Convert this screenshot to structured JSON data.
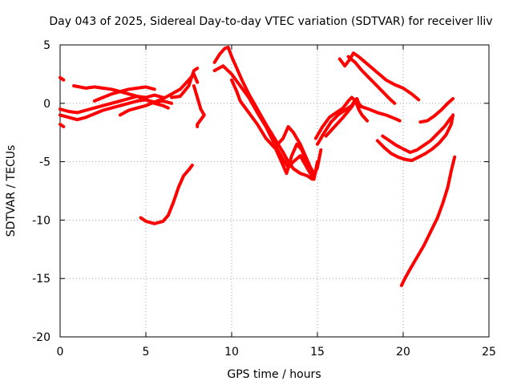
{
  "chart_data": {
    "type": "scatter",
    "title": "Day 043 of 2025, Sidereal Day-to-day VTEC variation (SDTVAR) for receiver lliv",
    "xlabel": "GPS time / hours",
    "ylabel": "SDTVAR / TECUs",
    "xlim": [
      0,
      25
    ],
    "ylim": [
      -20,
      5
    ],
    "xticks": [
      0,
      5,
      10,
      15,
      20,
      25
    ],
    "yticks": [
      5,
      0,
      -5,
      -10,
      -15,
      -20
    ],
    "xtick_labels": [
      "0",
      "5",
      "10",
      "15",
      "20",
      "25"
    ],
    "ytick_labels": [
      "5",
      "0",
      "-5",
      "-10",
      "-15",
      "-20"
    ],
    "grid": true,
    "series_color": "#ff0000",
    "traces": [
      [
        [
          0.0,
          2.2
        ],
        [
          0.2,
          2.0
        ]
      ],
      [
        [
          0.0,
          -0.5
        ],
        [
          0.5,
          -0.7
        ],
        [
          1.0,
          -0.8
        ],
        [
          1.5,
          -0.6
        ],
        [
          2.0,
          -0.4
        ],
        [
          2.5,
          -0.2
        ],
        [
          3.0,
          0.0
        ],
        [
          3.5,
          0.2
        ],
        [
          4.0,
          0.4
        ],
        [
          4.5,
          0.6
        ],
        [
          5.0,
          0.5
        ],
        [
          5.5,
          0.7
        ],
        [
          6.0,
          0.5
        ]
      ],
      [
        [
          0.0,
          -1.0
        ],
        [
          0.5,
          -1.2
        ],
        [
          1.0,
          -1.4
        ],
        [
          1.5,
          -1.2
        ],
        [
          2.0,
          -0.9
        ],
        [
          2.5,
          -0.6
        ],
        [
          3.0,
          -0.4
        ],
        [
          3.5,
          -0.2
        ],
        [
          4.0,
          0.0
        ],
        [
          4.5,
          0.2
        ],
        [
          5.0,
          0.3
        ],
        [
          5.5,
          0.1
        ],
        [
          6.0,
          0.2
        ],
        [
          6.5,
          0.0
        ]
      ],
      [
        [
          0.0,
          -1.8
        ],
        [
          0.2,
          -2.0
        ]
      ],
      [
        [
          0.8,
          1.5
        ],
        [
          1.5,
          1.3
        ],
        [
          2.0,
          1.4
        ],
        [
          2.5,
          1.3
        ],
        [
          3.0,
          1.2
        ],
        [
          3.5,
          1.0
        ],
        [
          4.0,
          0.8
        ],
        [
          4.5,
          0.6
        ],
        [
          5.0,
          0.3
        ],
        [
          5.5,
          0.0
        ],
        [
          6.0,
          -0.2
        ],
        [
          6.3,
          -0.4
        ]
      ],
      [
        [
          2.0,
          0.2
        ],
        [
          2.5,
          0.5
        ],
        [
          3.0,
          0.8
        ],
        [
          3.5,
          1.0
        ],
        [
          4.0,
          1.2
        ],
        [
          4.5,
          1.3
        ],
        [
          5.0,
          1.4
        ],
        [
          5.5,
          1.2
        ]
      ],
      [
        [
          3.5,
          -1.0
        ],
        [
          4.0,
          -0.6
        ],
        [
          4.5,
          -0.4
        ],
        [
          5.0,
          -0.2
        ],
        [
          5.5,
          0.1
        ],
        [
          6.0,
          0.4
        ],
        [
          6.5,
          0.8
        ],
        [
          7.0,
          1.2
        ],
        [
          7.5,
          2.0
        ],
        [
          7.8,
          2.5
        ],
        [
          8.0,
          1.8
        ]
      ],
      [
        [
          6.5,
          0.5
        ],
        [
          7.0,
          0.6
        ],
        [
          7.5,
          1.5
        ],
        [
          7.8,
          2.8
        ],
        [
          8.0,
          3.0
        ]
      ],
      [
        [
          7.8,
          1.5
        ],
        [
          8.0,
          0.5
        ],
        [
          8.2,
          -0.5
        ],
        [
          8.4,
          -1.0
        ],
        [
          8.0,
          -1.8
        ],
        [
          8.0,
          -2.0
        ]
      ],
      [
        [
          4.7,
          -9.8
        ],
        [
          5.0,
          -10.1
        ],
        [
          5.5,
          -10.3
        ],
        [
          6.0,
          -10.1
        ],
        [
          6.3,
          -9.6
        ],
        [
          6.6,
          -8.5
        ],
        [
          6.9,
          -7.2
        ],
        [
          7.2,
          -6.2
        ],
        [
          7.5,
          -5.7
        ],
        [
          7.7,
          -5.3
        ]
      ],
      [
        [
          9.0,
          3.5
        ],
        [
          9.3,
          4.2
        ],
        [
          9.6,
          4.7
        ],
        [
          9.8,
          4.8
        ],
        [
          10.0,
          4.0
        ],
        [
          10.3,
          3.0
        ],
        [
          10.6,
          2.0
        ],
        [
          11.0,
          0.8
        ],
        [
          11.5,
          -0.5
        ],
        [
          12.0,
          -1.8
        ],
        [
          12.5,
          -3.0
        ],
        [
          13.0,
          -4.2
        ],
        [
          13.3,
          -5.0
        ],
        [
          13.6,
          -5.6
        ],
        [
          14.0,
          -6.0
        ],
        [
          14.4,
          -6.2
        ],
        [
          14.7,
          -6.5
        ],
        [
          15.0,
          -5.5
        ],
        [
          15.2,
          -4.0
        ]
      ],
      [
        [
          9.0,
          2.8
        ],
        [
          9.5,
          3.2
        ],
        [
          10.0,
          2.5
        ],
        [
          10.5,
          1.5
        ],
        [
          11.0,
          0.5
        ],
        [
          11.5,
          -0.8
        ],
        [
          12.0,
          -2.0
        ],
        [
          12.5,
          -3.5
        ],
        [
          13.0,
          -4.8
        ],
        [
          13.3,
          -5.5
        ],
        [
          13.6,
          -5.0
        ],
        [
          14.0,
          -4.5
        ],
        [
          14.5,
          -5.8
        ],
        [
          14.8,
          -6.5
        ],
        [
          15.0,
          -5.0
        ]
      ],
      [
        [
          10.0,
          2.0
        ],
        [
          10.3,
          1.0
        ],
        [
          10.5,
          0.2
        ],
        [
          11.0,
          -0.8
        ],
        [
          11.5,
          -1.8
        ],
        [
          12.0,
          -3.0
        ],
        [
          12.5,
          -3.8
        ],
        [
          13.0,
          -3.0
        ],
        [
          13.3,
          -2.0
        ],
        [
          13.6,
          -2.5
        ],
        [
          14.0,
          -3.5
        ],
        [
          14.3,
          -4.5
        ],
        [
          14.6,
          -5.5
        ],
        [
          14.8,
          -6.0
        ]
      ],
      [
        [
          12.3,
          -2.5
        ],
        [
          12.6,
          -4.0
        ],
        [
          12.9,
          -5.0
        ],
        [
          13.2,
          -6.0
        ],
        [
          13.5,
          -4.5
        ],
        [
          13.8,
          -3.5
        ],
        [
          14.1,
          -4.0
        ],
        [
          14.4,
          -5.5
        ]
      ],
      [
        [
          14.9,
          -3.0
        ],
        [
          15.3,
          -2.0
        ],
        [
          15.7,
          -1.2
        ],
        [
          16.1,
          -0.8
        ],
        [
          16.5,
          -0.4
        ],
        [
          16.8,
          0.2
        ],
        [
          17.0,
          0.5
        ],
        [
          17.3,
          0.1
        ],
        [
          17.6,
          -0.3
        ],
        [
          18.0,
          -0.5
        ],
        [
          18.5,
          -0.8
        ],
        [
          19.0,
          -1.0
        ],
        [
          19.5,
          -1.3
        ],
        [
          19.8,
          -1.5
        ]
      ],
      [
        [
          15.0,
          -3.5
        ],
        [
          15.4,
          -2.5
        ],
        [
          15.8,
          -1.6
        ],
        [
          16.2,
          -1.0
        ],
        [
          16.6,
          -0.6
        ],
        [
          17.0,
          -0.2
        ],
        [
          17.2,
          0.3
        ],
        [
          17.4,
          -0.5
        ],
        [
          17.6,
          -1.0
        ],
        [
          17.9,
          -1.5
        ]
      ],
      [
        [
          15.5,
          -2.8
        ],
        [
          16.0,
          -2.0
        ],
        [
          16.5,
          -1.2
        ],
        [
          17.0,
          -0.3
        ],
        [
          17.3,
          0.4
        ],
        [
          17.5,
          -0.3
        ]
      ],
      [
        [
          16.3,
          3.8
        ],
        [
          16.6,
          3.2
        ],
        [
          16.9,
          3.8
        ],
        [
          17.1,
          4.3
        ],
        [
          17.4,
          4.0
        ],
        [
          17.8,
          3.5
        ],
        [
          18.2,
          3.0
        ],
        [
          18.6,
          2.5
        ],
        [
          19.0,
          2.0
        ],
        [
          19.5,
          1.6
        ],
        [
          20.0,
          1.3
        ],
        [
          20.5,
          0.8
        ],
        [
          20.9,
          0.3
        ]
      ],
      [
        [
          16.8,
          4.0
        ],
        [
          17.2,
          3.5
        ],
        [
          17.6,
          2.8
        ],
        [
          18.0,
          2.2
        ],
        [
          18.4,
          1.6
        ],
        [
          18.8,
          1.0
        ],
        [
          19.2,
          0.4
        ],
        [
          19.5,
          0.0
        ]
      ],
      [
        [
          18.5,
          -3.2
        ],
        [
          18.9,
          -3.8
        ],
        [
          19.3,
          -4.3
        ],
        [
          19.7,
          -4.6
        ],
        [
          20.1,
          -4.8
        ],
        [
          20.5,
          -4.9
        ],
        [
          20.9,
          -4.6
        ],
        [
          21.3,
          -4.3
        ],
        [
          21.7,
          -3.9
        ],
        [
          22.1,
          -3.4
        ],
        [
          22.5,
          -2.7
        ],
        [
          22.8,
          -1.8
        ],
        [
          22.9,
          -1.0
        ]
      ],
      [
        [
          18.8,
          -2.8
        ],
        [
          19.2,
          -3.2
        ],
        [
          19.6,
          -3.6
        ],
        [
          20.0,
          -3.9
        ],
        [
          20.4,
          -4.2
        ],
        [
          20.8,
          -4.0
        ],
        [
          21.2,
          -3.6
        ],
        [
          21.6,
          -3.2
        ],
        [
          22.0,
          -2.6
        ],
        [
          22.4,
          -2.0
        ],
        [
          22.8,
          -1.2
        ]
      ],
      [
        [
          21.0,
          -1.6
        ],
        [
          21.4,
          -1.5
        ],
        [
          21.8,
          -1.1
        ],
        [
          22.2,
          -0.6
        ],
        [
          22.6,
          0.0
        ],
        [
          22.9,
          0.4
        ]
      ],
      [
        [
          19.9,
          -15.6
        ],
        [
          20.1,
          -15.0
        ],
        [
          20.4,
          -14.2
        ],
        [
          20.8,
          -13.2
        ],
        [
          21.2,
          -12.2
        ],
        [
          21.6,
          -11.0
        ],
        [
          22.0,
          -9.8
        ],
        [
          22.3,
          -8.6
        ],
        [
          22.6,
          -7.2
        ],
        [
          22.8,
          -5.8
        ],
        [
          23.0,
          -4.6
        ]
      ]
    ]
  }
}
